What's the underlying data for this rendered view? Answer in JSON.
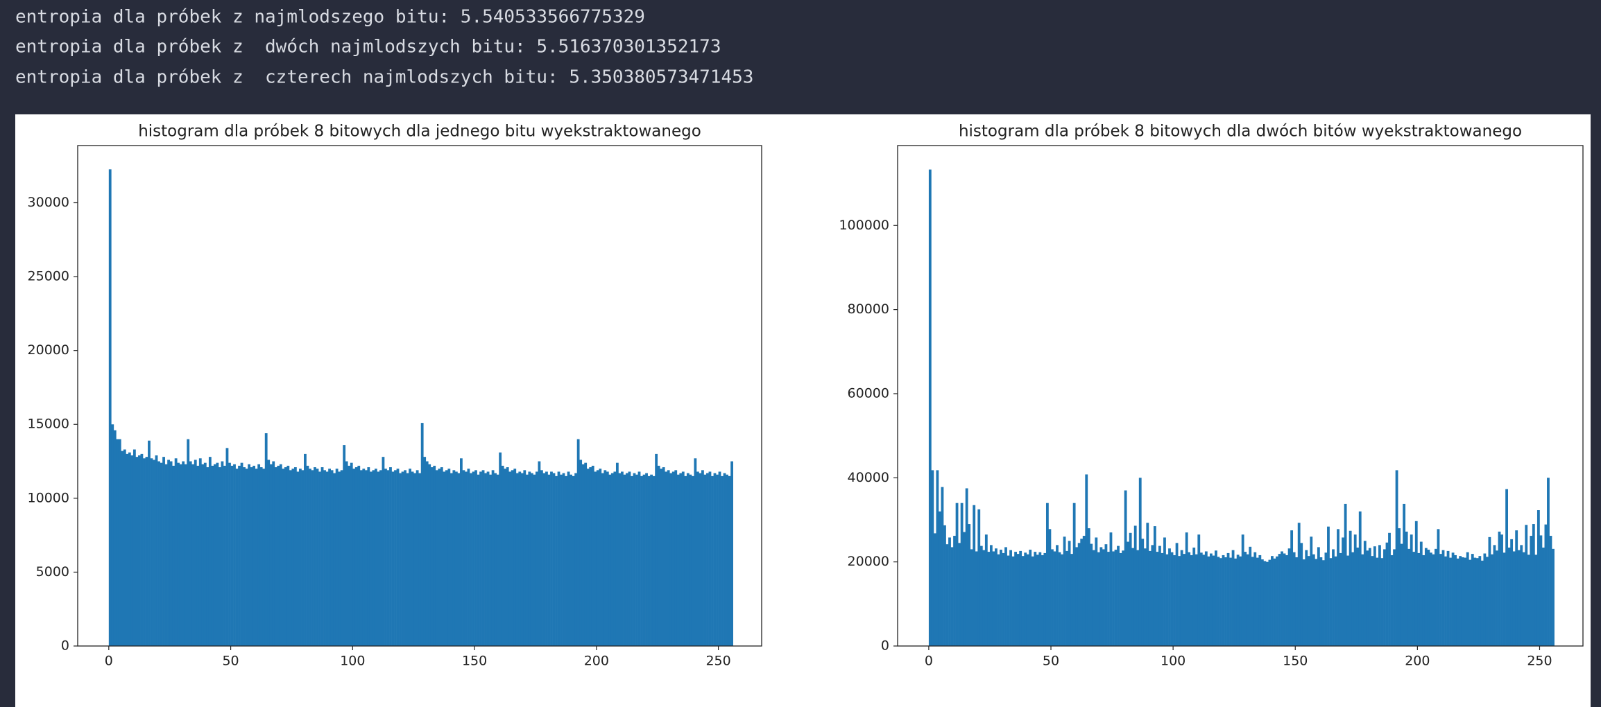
{
  "header": {
    "lines": [
      "entropia dla próbek z najmlodszego bitu: 5.540533566775329",
      "entropia dla próbek z  dwóch najmlodszych bitu: 5.516370301352173",
      "entropia dla próbek z  czterech najmlodszych bitu: 5.350380573471453"
    ]
  },
  "chart_data": [
    {
      "type": "histogram",
      "title": "histogram dla próbek 8 bitowych dla jednego bitu wyekstraktowanego",
      "color": "#1f77b4",
      "xlim": [
        -12.75,
        267.75
      ],
      "xticks": [
        0,
        50,
        100,
        150,
        200,
        250
      ],
      "ylim": [
        0,
        33870
      ],
      "yticks": [
        0,
        5000,
        10000,
        15000,
        20000,
        25000,
        30000
      ],
      "bins": [
        0,
        1,
        2,
        3,
        4,
        5,
        6,
        7,
        8,
        9,
        10,
        11,
        12,
        13,
        14,
        15,
        16,
        17,
        18,
        19,
        20,
        21,
        22,
        23,
        24,
        25,
        26,
        27,
        28,
        29,
        30,
        31,
        32,
        33,
        34,
        35,
        36,
        37,
        38,
        39,
        40,
        41,
        42,
        43,
        44,
        45,
        46,
        47,
        48,
        49,
        50,
        51,
        52,
        53,
        54,
        55,
        56,
        57,
        58,
        59,
        60,
        61,
        62,
        63,
        64,
        65,
        66,
        67,
        68,
        69,
        70,
        71,
        72,
        73,
        74,
        75,
        76,
        77,
        78,
        79,
        80,
        81,
        82,
        83,
        84,
        85,
        86,
        87,
        88,
        89,
        90,
        91,
        92,
        93,
        94,
        95,
        96,
        97,
        98,
        99,
        100,
        101,
        102,
        103,
        104,
        105,
        106,
        107,
        108,
        109,
        110,
        111,
        112,
        113,
        114,
        115,
        116,
        117,
        118,
        119,
        120,
        121,
        122,
        123,
        124,
        125,
        126,
        127,
        128,
        129,
        130,
        131,
        132,
        133,
        134,
        135,
        136,
        137,
        138,
        139,
        140,
        141,
        142,
        143,
        144,
        145,
        146,
        147,
        148,
        149,
        150,
        151,
        152,
        153,
        154,
        155,
        156,
        157,
        158,
        159,
        160,
        161,
        162,
        163,
        164,
        165,
        166,
        167,
        168,
        169,
        170,
        171,
        172,
        173,
        174,
        175,
        176,
        177,
        178,
        179,
        180,
        181,
        182,
        183,
        184,
        185,
        186,
        187,
        188,
        189,
        190,
        191,
        192,
        193,
        194,
        195,
        196,
        197,
        198,
        199,
        200,
        201,
        202,
        203,
        204,
        205,
        206,
        207,
        208,
        209,
        210,
        211,
        212,
        213,
        214,
        215,
        216,
        217,
        218,
        219,
        220,
        221,
        222,
        223,
        224,
        225,
        226,
        227,
        228,
        229,
        230,
        231,
        232,
        233,
        234,
        235,
        236,
        237,
        238,
        239,
        240,
        241,
        242,
        243,
        244,
        245,
        246,
        247,
        248,
        249,
        250,
        251,
        252,
        253,
        254,
        255,
        256
      ],
      "values": [
        32260,
        15000,
        14600,
        14000,
        14000,
        13200,
        13300,
        13000,
        13100,
        12900,
        13300,
        12800,
        12900,
        13000,
        12700,
        12800,
        13900,
        12700,
        12600,
        12900,
        12500,
        12400,
        12800,
        12300,
        12600,
        12500,
        12200,
        12700,
        12400,
        12300,
        12500,
        12300,
        14000,
        12500,
        12300,
        12600,
        12200,
        12700,
        12300,
        12400,
        12100,
        12800,
        12200,
        12300,
        12400,
        12100,
        12500,
        12200,
        13400,
        12400,
        12200,
        12300,
        12000,
        12200,
        12400,
        12100,
        12000,
        12300,
        12100,
        12200,
        12000,
        12300,
        12100,
        12000,
        14400,
        12600,
        12300,
        12500,
        12100,
        12200,
        12300,
        12000,
        12100,
        12200,
        11900,
        12000,
        12100,
        11800,
        12000,
        11900,
        13000,
        12200,
        12000,
        11900,
        12100,
        12000,
        11800,
        12100,
        11900,
        11800,
        12000,
        11900,
        11700,
        12000,
        11800,
        11900,
        13600,
        12500,
        12200,
        12400,
        12000,
        12100,
        12200,
        11900,
        12000,
        11900,
        12100,
        11800,
        11900,
        12000,
        11800,
        11900,
        12800,
        12000,
        11900,
        12100,
        11800,
        11900,
        12000,
        11700,
        11800,
        11900,
        11700,
        12000,
        11800,
        11700,
        11900,
        11700,
        15100,
        12800,
        12500,
        12300,
        12100,
        12200,
        11900,
        12000,
        12100,
        11800,
        11900,
        12000,
        11700,
        11900,
        11800,
        11700,
        12700,
        11900,
        11800,
        12000,
        11700,
        11800,
        11900,
        11600,
        11800,
        11900,
        11700,
        11800,
        11600,
        11900,
        11700,
        11600,
        13100,
        12200,
        12000,
        12100,
        11800,
        11900,
        12000,
        11700,
        11800,
        11700,
        11900,
        11600,
        11800,
        11700,
        11600,
        11800,
        12500,
        11900,
        11700,
        11800,
        11600,
        11800,
        11700,
        11500,
        11800,
        11600,
        11700,
        11500,
        11800,
        11600,
        11500,
        11700,
        14000,
        12600,
        12300,
        12400,
        12000,
        12100,
        12200,
        11800,
        11900,
        12000,
        11700,
        11900,
        11800,
        11600,
        11700,
        11800,
        12400,
        11700,
        11800,
        11600,
        11700,
        11800,
        11500,
        11700,
        11600,
        11800,
        11500,
        11600,
        11700,
        11500,
        11600,
        11500,
        13000,
        12200,
        12000,
        12100,
        11800,
        11900,
        11700,
        11800,
        11900,
        11600,
        11700,
        11800,
        11500,
        11700,
        11600,
        11500,
        12700,
        11800,
        11700,
        11900,
        11600,
        11700,
        11800,
        11500,
        11700,
        11600,
        11800,
        11500,
        11700,
        11600,
        11500,
        12500
      ]
    },
    {
      "type": "histogram",
      "title": "histogram dla próbek 8 bitowych dla dwóch bitów wyekstraktowanego",
      "color": "#1f77b4",
      "xlim": [
        -12.75,
        267.75
      ],
      "xticks": [
        0,
        50,
        100,
        150,
        200,
        250
      ],
      "ylim": [
        0,
        119000
      ],
      "yticks": [
        0,
        20000,
        40000,
        60000,
        80000,
        100000
      ],
      "bins": [
        0,
        1,
        2,
        3,
        4,
        5,
        6,
        7,
        8,
        9,
        10,
        11,
        12,
        13,
        14,
        15,
        16,
        17,
        18,
        19,
        20,
        21,
        22,
        23,
        24,
        25,
        26,
        27,
        28,
        29,
        30,
        31,
        32,
        33,
        34,
        35,
        36,
        37,
        38,
        39,
        40,
        41,
        42,
        43,
        44,
        45,
        46,
        47,
        48,
        49,
        50,
        51,
        52,
        53,
        54,
        55,
        56,
        57,
        58,
        59,
        60,
        61,
        62,
        63,
        64,
        65,
        66,
        67,
        68,
        69,
        70,
        71,
        72,
        73,
        74,
        75,
        76,
        77,
        78,
        79,
        80,
        81,
        82,
        83,
        84,
        85,
        86,
        87,
        88,
        89,
        90,
        91,
        92,
        93,
        94,
        95,
        96,
        97,
        98,
        99,
        100,
        101,
        102,
        103,
        104,
        105,
        106,
        107,
        108,
        109,
        110,
        111,
        112,
        113,
        114,
        115,
        116,
        117,
        118,
        119,
        120,
        121,
        122,
        123,
        124,
        125,
        126,
        127,
        128,
        129,
        130,
        131,
        132,
        133,
        134,
        135,
        136,
        137,
        138,
        139,
        140,
        141,
        142,
        143,
        144,
        145,
        146,
        147,
        148,
        149,
        150,
        151,
        152,
        153,
        154,
        155,
        156,
        157,
        158,
        159,
        160,
        161,
        162,
        163,
        164,
        165,
        166,
        167,
        168,
        169,
        170,
        171,
        172,
        173,
        174,
        175,
        176,
        177,
        178,
        179,
        180,
        181,
        182,
        183,
        184,
        185,
        186,
        187,
        188,
        189,
        190,
        191,
        192,
        193,
        194,
        195,
        196,
        197,
        198,
        199,
        200,
        201,
        202,
        203,
        204,
        205,
        206,
        207,
        208,
        209,
        210,
        211,
        212,
        213,
        214,
        215,
        216,
        217,
        218,
        219,
        220,
        221,
        222,
        223,
        224,
        225,
        226,
        227,
        228,
        229,
        230,
        231,
        232,
        233,
        234,
        235,
        236,
        237,
        238,
        239,
        240,
        241,
        242,
        243,
        244,
        245,
        246,
        247,
        248,
        249,
        250,
        251,
        252,
        253,
        254,
        255,
        256
      ],
      "values": [
        113300,
        41800,
        26800,
        41800,
        32000,
        37800,
        28700,
        24200,
        25800,
        23500,
        26200,
        34000,
        24500,
        34000,
        27100,
        37500,
        29000,
        23000,
        33500,
        22500,
        32500,
        23800,
        22800,
        26500,
        22400,
        24000,
        22500,
        23200,
        21800,
        22900,
        22100,
        23500,
        21500,
        22800,
        21300,
        22400,
        21900,
        22600,
        21400,
        22200,
        21800,
        22900,
        21300,
        22400,
        21700,
        22300,
        21600,
        22100,
        34000,
        27800,
        23000,
        22500,
        24000,
        22300,
        21800,
        26000,
        22600,
        25000,
        21900,
        34000,
        23500,
        24500,
        25500,
        26200,
        40800,
        28000,
        24300,
        22800,
        25800,
        22300,
        23500,
        23000,
        24200,
        22400,
        27000,
        22500,
        22900,
        23800,
        22100,
        22700,
        37000,
        24800,
        26900,
        23300,
        28600,
        22800,
        40000,
        25500,
        23200,
        29300,
        22600,
        24000,
        28500,
        22400,
        23800,
        22100,
        25800,
        21800,
        23200,
        22300,
        21600,
        24500,
        21400,
        22800,
        21900,
        27000,
        22300,
        21600,
        23400,
        21800,
        26500,
        22200,
        21700,
        22500,
        21300,
        22000,
        21500,
        22700,
        21200,
        20900,
        21600,
        21100,
        22100,
        21000,
        22800,
        20800,
        21700,
        21300,
        26500,
        22400,
        21800,
        23600,
        21200,
        22300,
        21000,
        21600,
        20600,
        20200,
        20000,
        20500,
        21400,
        20800,
        21300,
        21900,
        22500,
        22000,
        21600,
        23200,
        27500,
        22300,
        21100,
        29300,
        24500,
        20600,
        22800,
        21400,
        26000,
        21800,
        20700,
        23500,
        21100,
        20400,
        22200,
        28400,
        20900,
        23000,
        21300,
        27800,
        22100,
        25800,
        33800,
        21500,
        27400,
        22300,
        26500,
        23400,
        32000,
        21800,
        25000,
        22700,
        23300,
        21400,
        23700,
        21000,
        24000,
        20900,
        23000,
        24600,
        26900,
        21600,
        23000,
        41800,
        28000,
        24300,
        33800,
        27200,
        23100,
        26500,
        22400,
        29700,
        22100,
        24800,
        21600,
        23300,
        22900,
        22200,
        21800,
        23100,
        27800,
        21900,
        22800,
        21300,
        22600,
        21000,
        22200,
        21600,
        20800,
        21400,
        21100,
        21000,
        22300,
        20500,
        21900,
        21000,
        20900,
        21400,
        20300,
        22000,
        21200,
        25900,
        21800,
        24000,
        22700,
        27200,
        26500,
        22200,
        37300,
        23400,
        25400,
        22500,
        27500,
        22800,
        24000,
        22300,
        28800,
        21700,
        26200,
        29000,
        21700,
        32300,
        26300,
        23400,
        28900,
        40000,
        26200,
        23100
      ]
    }
  ]
}
